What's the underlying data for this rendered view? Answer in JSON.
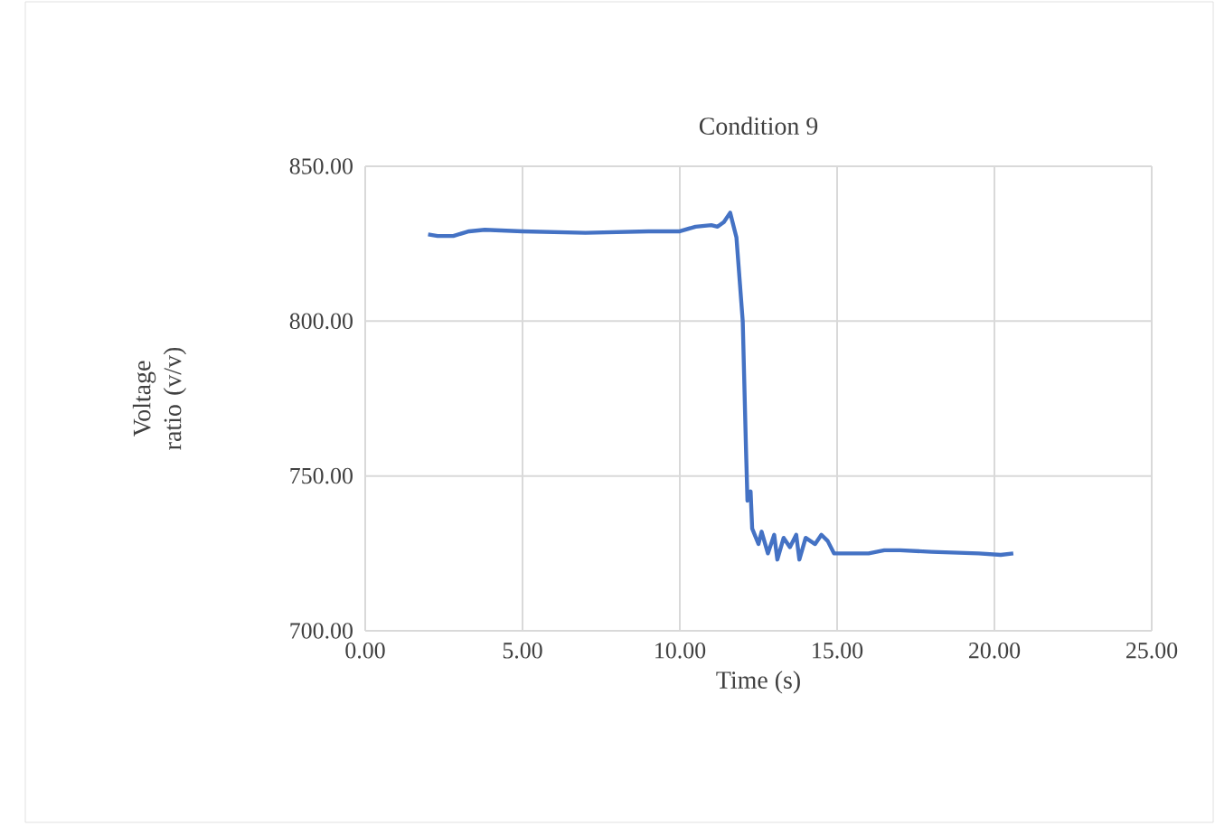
{
  "chart_data": {
    "type": "line",
    "title": "Condition 9",
    "xlabel": "Time (s)",
    "ylabel": "Voltage ratio (v/v)",
    "xlim": [
      0,
      25
    ],
    "ylim": [
      700,
      850
    ],
    "xticks": [
      {
        "value": 0,
        "label": "0.00"
      },
      {
        "value": 5,
        "label": "5.00"
      },
      {
        "value": 10,
        "label": "10.00"
      },
      {
        "value": 15,
        "label": "15.00"
      },
      {
        "value": 20,
        "label": "20.00"
      },
      {
        "value": 25,
        "label": "25.00"
      }
    ],
    "yticks": [
      {
        "value": 700,
        "label": "700.00"
      },
      {
        "value": 750,
        "label": "750.00"
      },
      {
        "value": 800,
        "label": "800.00"
      },
      {
        "value": 850,
        "label": "850.00"
      }
    ],
    "grid": true,
    "marker": "none",
    "line_style": "solid",
    "series": [
      {
        "color": "#4472c4",
        "x": [
          2.0,
          2.3,
          2.8,
          3.3,
          3.8,
          5,
          7,
          9,
          10,
          10.5,
          11,
          11.2,
          11.4,
          11.6,
          11.8,
          12.0,
          12.1,
          12.15,
          12.25,
          12.3,
          12.5,
          12.6,
          12.8,
          13.0,
          13.1,
          13.3,
          13.5,
          13.7,
          13.8,
          14.0,
          14.3,
          14.5,
          14.7,
          14.9,
          16,
          16.5,
          17,
          18,
          19.5,
          20.2,
          20.6
        ],
        "values": [
          828,
          827.5,
          827.5,
          829,
          829.5,
          829,
          828.5,
          829,
          829,
          830.5,
          831,
          830.5,
          832,
          835,
          827,
          800,
          760,
          742,
          745,
          733,
          728,
          732,
          725,
          731,
          723,
          730,
          727,
          731,
          723,
          730,
          728,
          731,
          729,
          725,
          725,
          726,
          726,
          725.5,
          725,
          724.5,
          725
        ]
      }
    ]
  }
}
